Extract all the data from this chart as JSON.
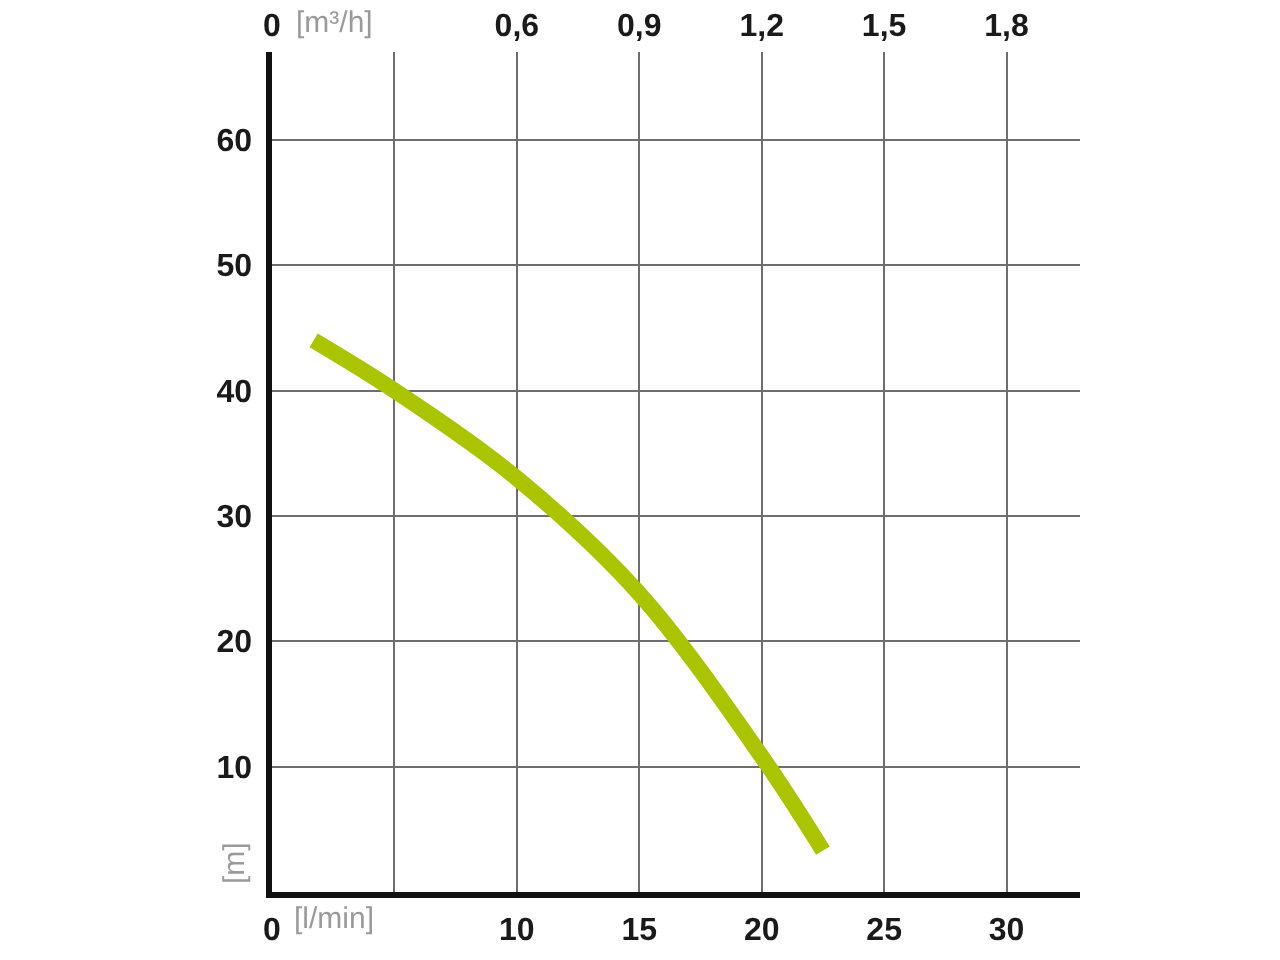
{
  "chart_data": {
    "type": "line",
    "xlabel": "[l/min]",
    "x2label": "[m³/h]",
    "ylabel": "[m]",
    "xlim": [
      0,
      33
    ],
    "xticks": [
      0,
      {
        "value": 5,
        "label": null
      },
      10,
      15,
      20,
      25,
      30
    ],
    "x2lim": [
      0,
      1.98
    ],
    "x2ticks": [
      0,
      {
        "value": 0.3,
        "label": null
      },
      {
        "value": 0.6,
        "label": "0,6"
      },
      {
        "value": 0.9,
        "label": "0,9"
      },
      {
        "value": 1.2,
        "label": "1,2"
      },
      {
        "value": 1.5,
        "label": "1,5"
      },
      {
        "value": 1.8,
        "label": "1,8"
      }
    ],
    "ylim": [
      0,
      67
    ],
    "yticks": [
      10,
      20,
      30,
      40,
      50,
      60
    ],
    "series": [
      {
        "color": "#aac400",
        "x": [
          1.7,
          5,
          10,
          15,
          20,
          22.5
        ],
        "values": [
          44,
          40,
          33,
          23.8,
          10.8,
          3.3
        ]
      }
    ],
    "grid": true,
    "marker": "none",
    "line_style": "solid"
  }
}
